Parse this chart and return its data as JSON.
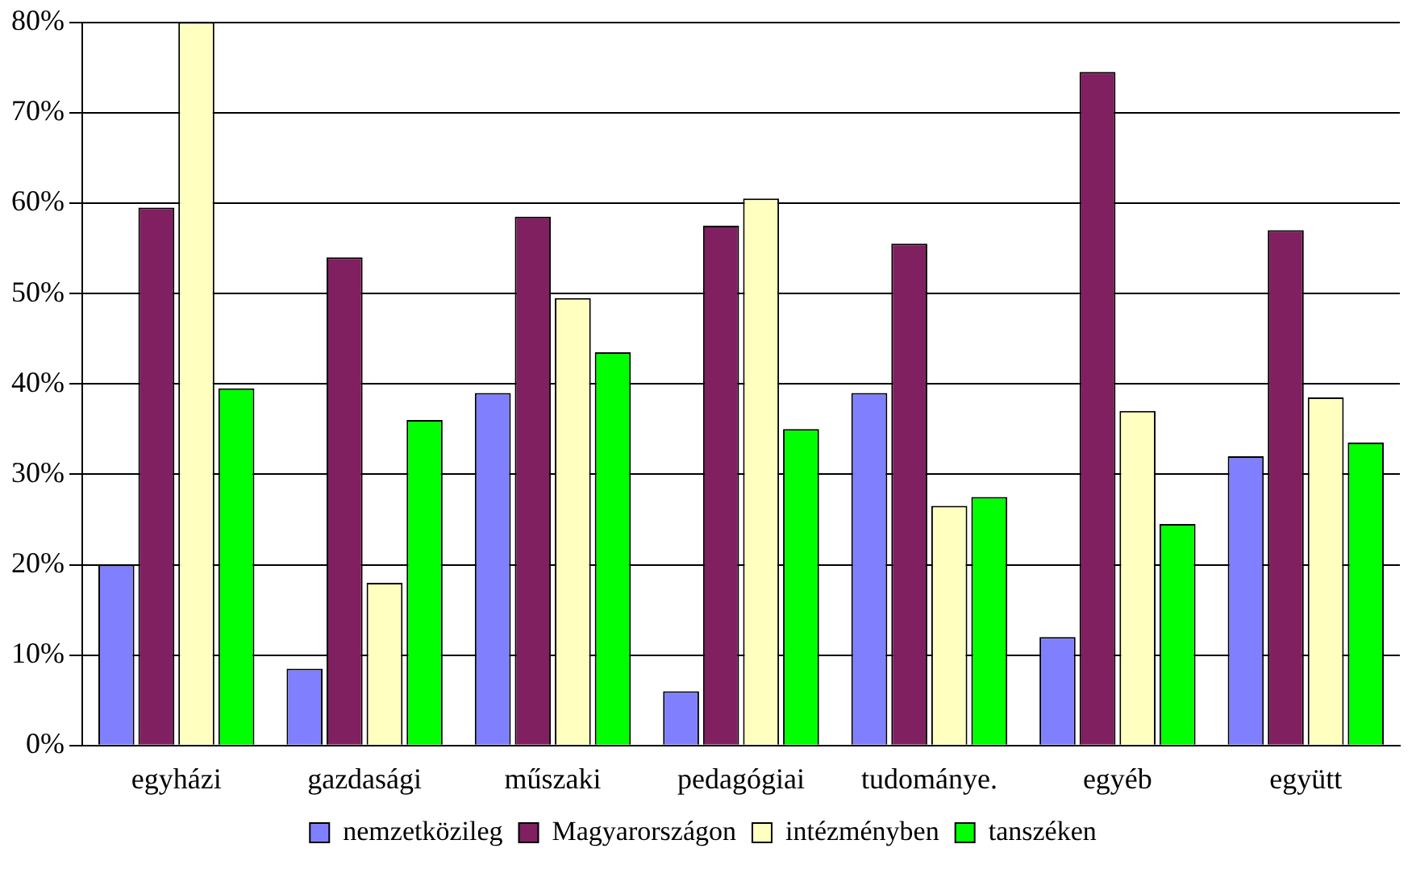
{
  "chart_data": {
    "type": "bar",
    "categories": [
      "egyházi",
      "gazdasági",
      "műszaki",
      "pedagógiai",
      "tudománye.",
      "egyéb",
      "együtt"
    ],
    "series": [
      {
        "name": "nemzetközileg",
        "color": "#8080ff",
        "values": [
          20,
          8.5,
          39,
          6,
          39,
          12,
          32
        ]
      },
      {
        "name": "Magyarországon",
        "color": "#802060",
        "values": [
          59.5,
          54,
          58.5,
          57.5,
          55.5,
          74.5,
          57
        ]
      },
      {
        "name": "intézményben",
        "color": "#ffffc0",
        "values": [
          80,
          18,
          49.5,
          60.5,
          26.5,
          37,
          38.5
        ]
      },
      {
        "name": "tanszéken",
        "color": "#00ff00",
        "values": [
          39.5,
          36,
          43.5,
          35,
          27.5,
          24.5,
          33.5
        ]
      }
    ],
    "ylim": [
      0,
      80
    ],
    "yticks": [
      {
        "value": 0,
        "label": "0%"
      },
      {
        "value": 10,
        "label": "10%"
      },
      {
        "value": 20,
        "label": "20%"
      },
      {
        "value": 30,
        "label": "30%"
      },
      {
        "value": 40,
        "label": "40%"
      },
      {
        "value": 50,
        "label": "50%"
      },
      {
        "value": 60,
        "label": "60%"
      },
      {
        "value": 70,
        "label": "70%"
      },
      {
        "value": 80,
        "label": "80%"
      }
    ],
    "grid": "y",
    "legend": "bottom"
  }
}
